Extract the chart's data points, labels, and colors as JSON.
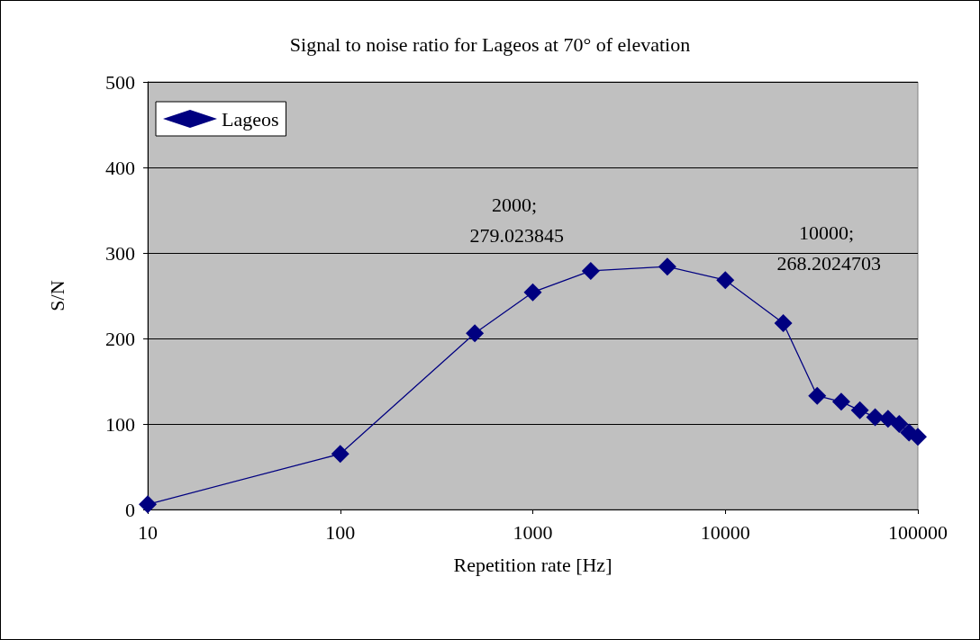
{
  "chart_data": {
    "type": "line",
    "title": "Signal to noise ratio for Lageos at 70° of elevation",
    "xlabel": "Repetition rate [Hz]",
    "ylabel": "S/N",
    "x": [
      10,
      100,
      500,
      1000,
      2000,
      5000,
      10000,
      20000,
      30000,
      40000,
      50000,
      60000,
      70000,
      80000,
      90000,
      100000
    ],
    "series": [
      {
        "name": "Lageos",
        "color": "#000080",
        "values": [
          6,
          65,
          206,
          254,
          279.023845,
          284,
          268.2024703,
          218,
          133,
          126,
          116,
          108,
          106,
          100,
          90,
          85
        ]
      }
    ],
    "xlim": [
      10,
      100000
    ],
    "xticks": [
      10,
      100,
      1000,
      10000,
      100000
    ],
    "ylim": [
      0,
      500
    ],
    "yticks": [
      0,
      100,
      200,
      300,
      400,
      500
    ],
    "log": "x",
    "grid": "y",
    "legend": "top left",
    "marker": "diamond",
    "line_style": "solid",
    "annotations": [
      {
        "text": "2000; 279.023845",
        "x": 2000,
        "y": 279.023845
      },
      {
        "text": "10000; 268.2024703",
        "x": 10000,
        "y": 268.2024703
      }
    ]
  }
}
